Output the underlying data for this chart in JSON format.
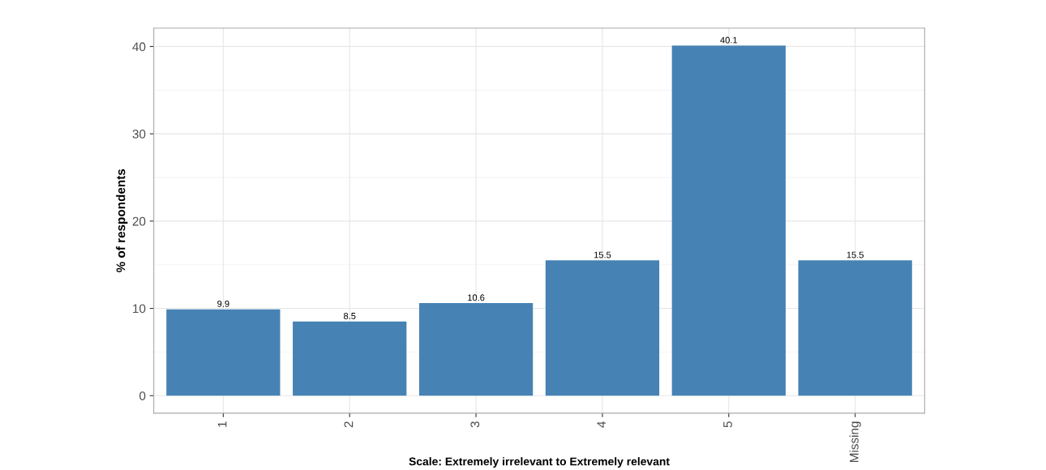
{
  "chart_data": {
    "type": "bar",
    "xlabel": "Scale: Extremely irrelevant to Extremely relevant",
    "ylabel": "% of respondents",
    "categories": [
      "1",
      "2",
      "3",
      "4",
      "5",
      "Missing"
    ],
    "values": [
      9.9,
      8.5,
      10.6,
      15.5,
      40.1,
      15.5
    ],
    "color": "#4682b4",
    "data_labels": true,
    "ylim": [
      -2.0,
      42.1
    ],
    "yticks": [
      0,
      10,
      20,
      30,
      40
    ],
    "grid": true
  }
}
